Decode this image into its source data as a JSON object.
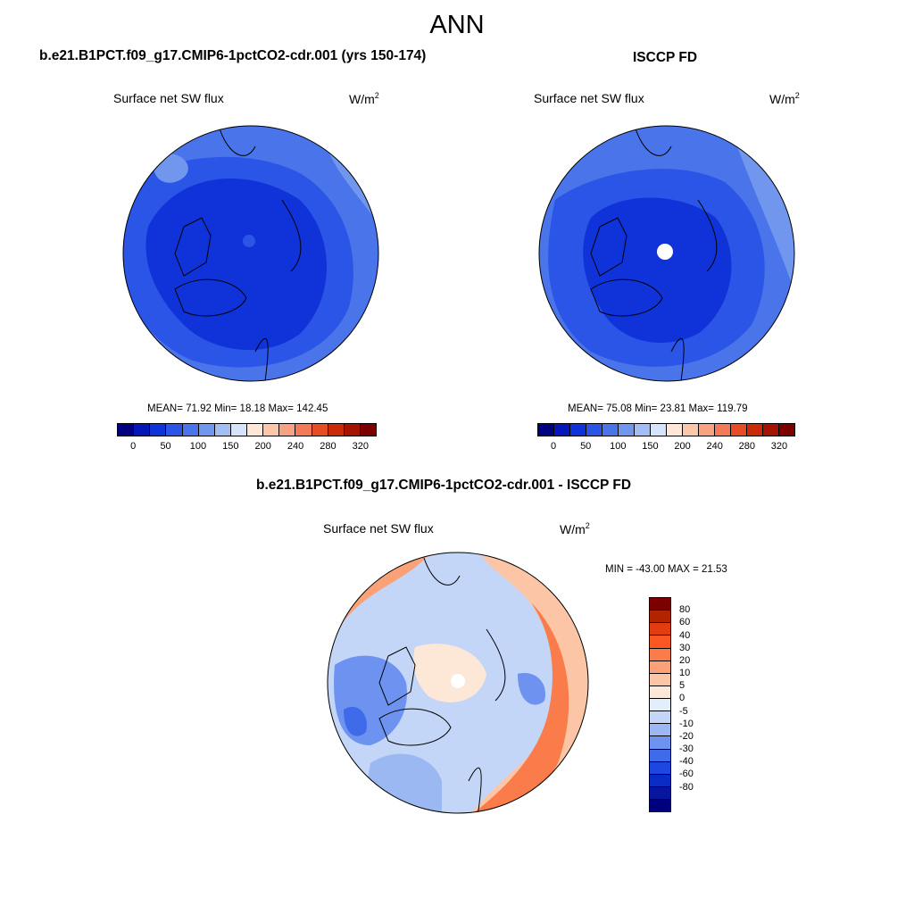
{
  "main_title": "ANN",
  "colors": {
    "seq": [
      "#010080",
      "#0517b8",
      "#0f33d9",
      "#2a55e6",
      "#4a74ea",
      "#7096ee",
      "#a3bdf5",
      "#d5e3fb",
      "#ffe7d8",
      "#fcc6a9",
      "#f9a281",
      "#f47956",
      "#e84c24",
      "#cc2a06",
      "#a31300",
      "#7c0000"
    ],
    "diff": [
      "#7c0000",
      "#b22400",
      "#e03e10",
      "#fa5723",
      "#fb7c4b",
      "#fba177",
      "#fcc6a6",
      "#fde8d8",
      "#e2eefc",
      "#c4d6f8",
      "#9cb8f3",
      "#6d92ef",
      "#3f6beb",
      "#1e47e2",
      "#0a2cc4",
      "#0715a0",
      "#00007f"
    ]
  },
  "panels": [
    {
      "title": "b.e21.B1PCT.f09_g17.CMIP6-1pctCO2-cdr.001 (yrs 150-174)",
      "variable": "Surface net SW flux",
      "units": "W/m",
      "units_exp": "2",
      "stats": "MEAN=  71.92  Min=  18.18  Max= 142.45",
      "colorbar_ticks": [
        "0",
        "50",
        "100",
        "150",
        "200",
        "240",
        "280",
        "320"
      ]
    },
    {
      "title": "ISCCP FD",
      "variable": "Surface net SW flux",
      "units": "W/m",
      "units_exp": "2",
      "stats": "MEAN=  75.08  Min=  23.81  Max= 119.79",
      "colorbar_ticks": [
        "0",
        "50",
        "100",
        "150",
        "200",
        "240",
        "280",
        "320"
      ]
    },
    {
      "title": "b.e21.B1PCT.f09_g17.CMIP6-1pctCO2-cdr.001 - ISCCP FD",
      "variable": "Surface net SW flux",
      "units": "W/m",
      "units_exp": "2",
      "stats": "MIN = -43.00 MAX =  21.53",
      "colorbar_ticks": [
        "80",
        "60",
        "40",
        "30",
        "20",
        "10",
        "5",
        "0",
        "-5",
        "-10",
        "-20",
        "-30",
        "-40",
        "-60",
        "-80"
      ]
    }
  ],
  "chart_data": [
    {
      "type": "heatmap",
      "projection": "north polar stereographic",
      "title": "b.e21.B1PCT.f09_g17.CMIP6-1pctCO2-cdr.001 (yrs 150-174)",
      "variable": "Surface net SW flux",
      "units": "W/m2",
      "mean": 71.92,
      "min": 18.18,
      "max": 142.45,
      "levels": [
        0,
        25,
        50,
        75,
        100,
        125,
        150,
        175,
        200,
        220,
        240,
        260,
        280,
        300,
        320
      ]
    },
    {
      "type": "heatmap",
      "projection": "north polar stereographic",
      "title": "ISCCP FD",
      "variable": "Surface net SW flux",
      "units": "W/m2",
      "mean": 75.08,
      "min": 23.81,
      "max": 119.79,
      "levels": [
        0,
        25,
        50,
        75,
        100,
        125,
        150,
        175,
        200,
        220,
        240,
        260,
        280,
        300,
        320
      ]
    },
    {
      "type": "heatmap",
      "projection": "north polar stereographic",
      "title": "b.e21.B1PCT.f09_g17.CMIP6-1pctCO2-cdr.001 - ISCCP FD",
      "variable": "Surface net SW flux",
      "units": "W/m2",
      "min": -43.0,
      "max": 21.53,
      "levels": [
        -80,
        -60,
        -40,
        -30,
        -20,
        -10,
        -5,
        0,
        5,
        10,
        20,
        30,
        40,
        60,
        80
      ]
    }
  ]
}
